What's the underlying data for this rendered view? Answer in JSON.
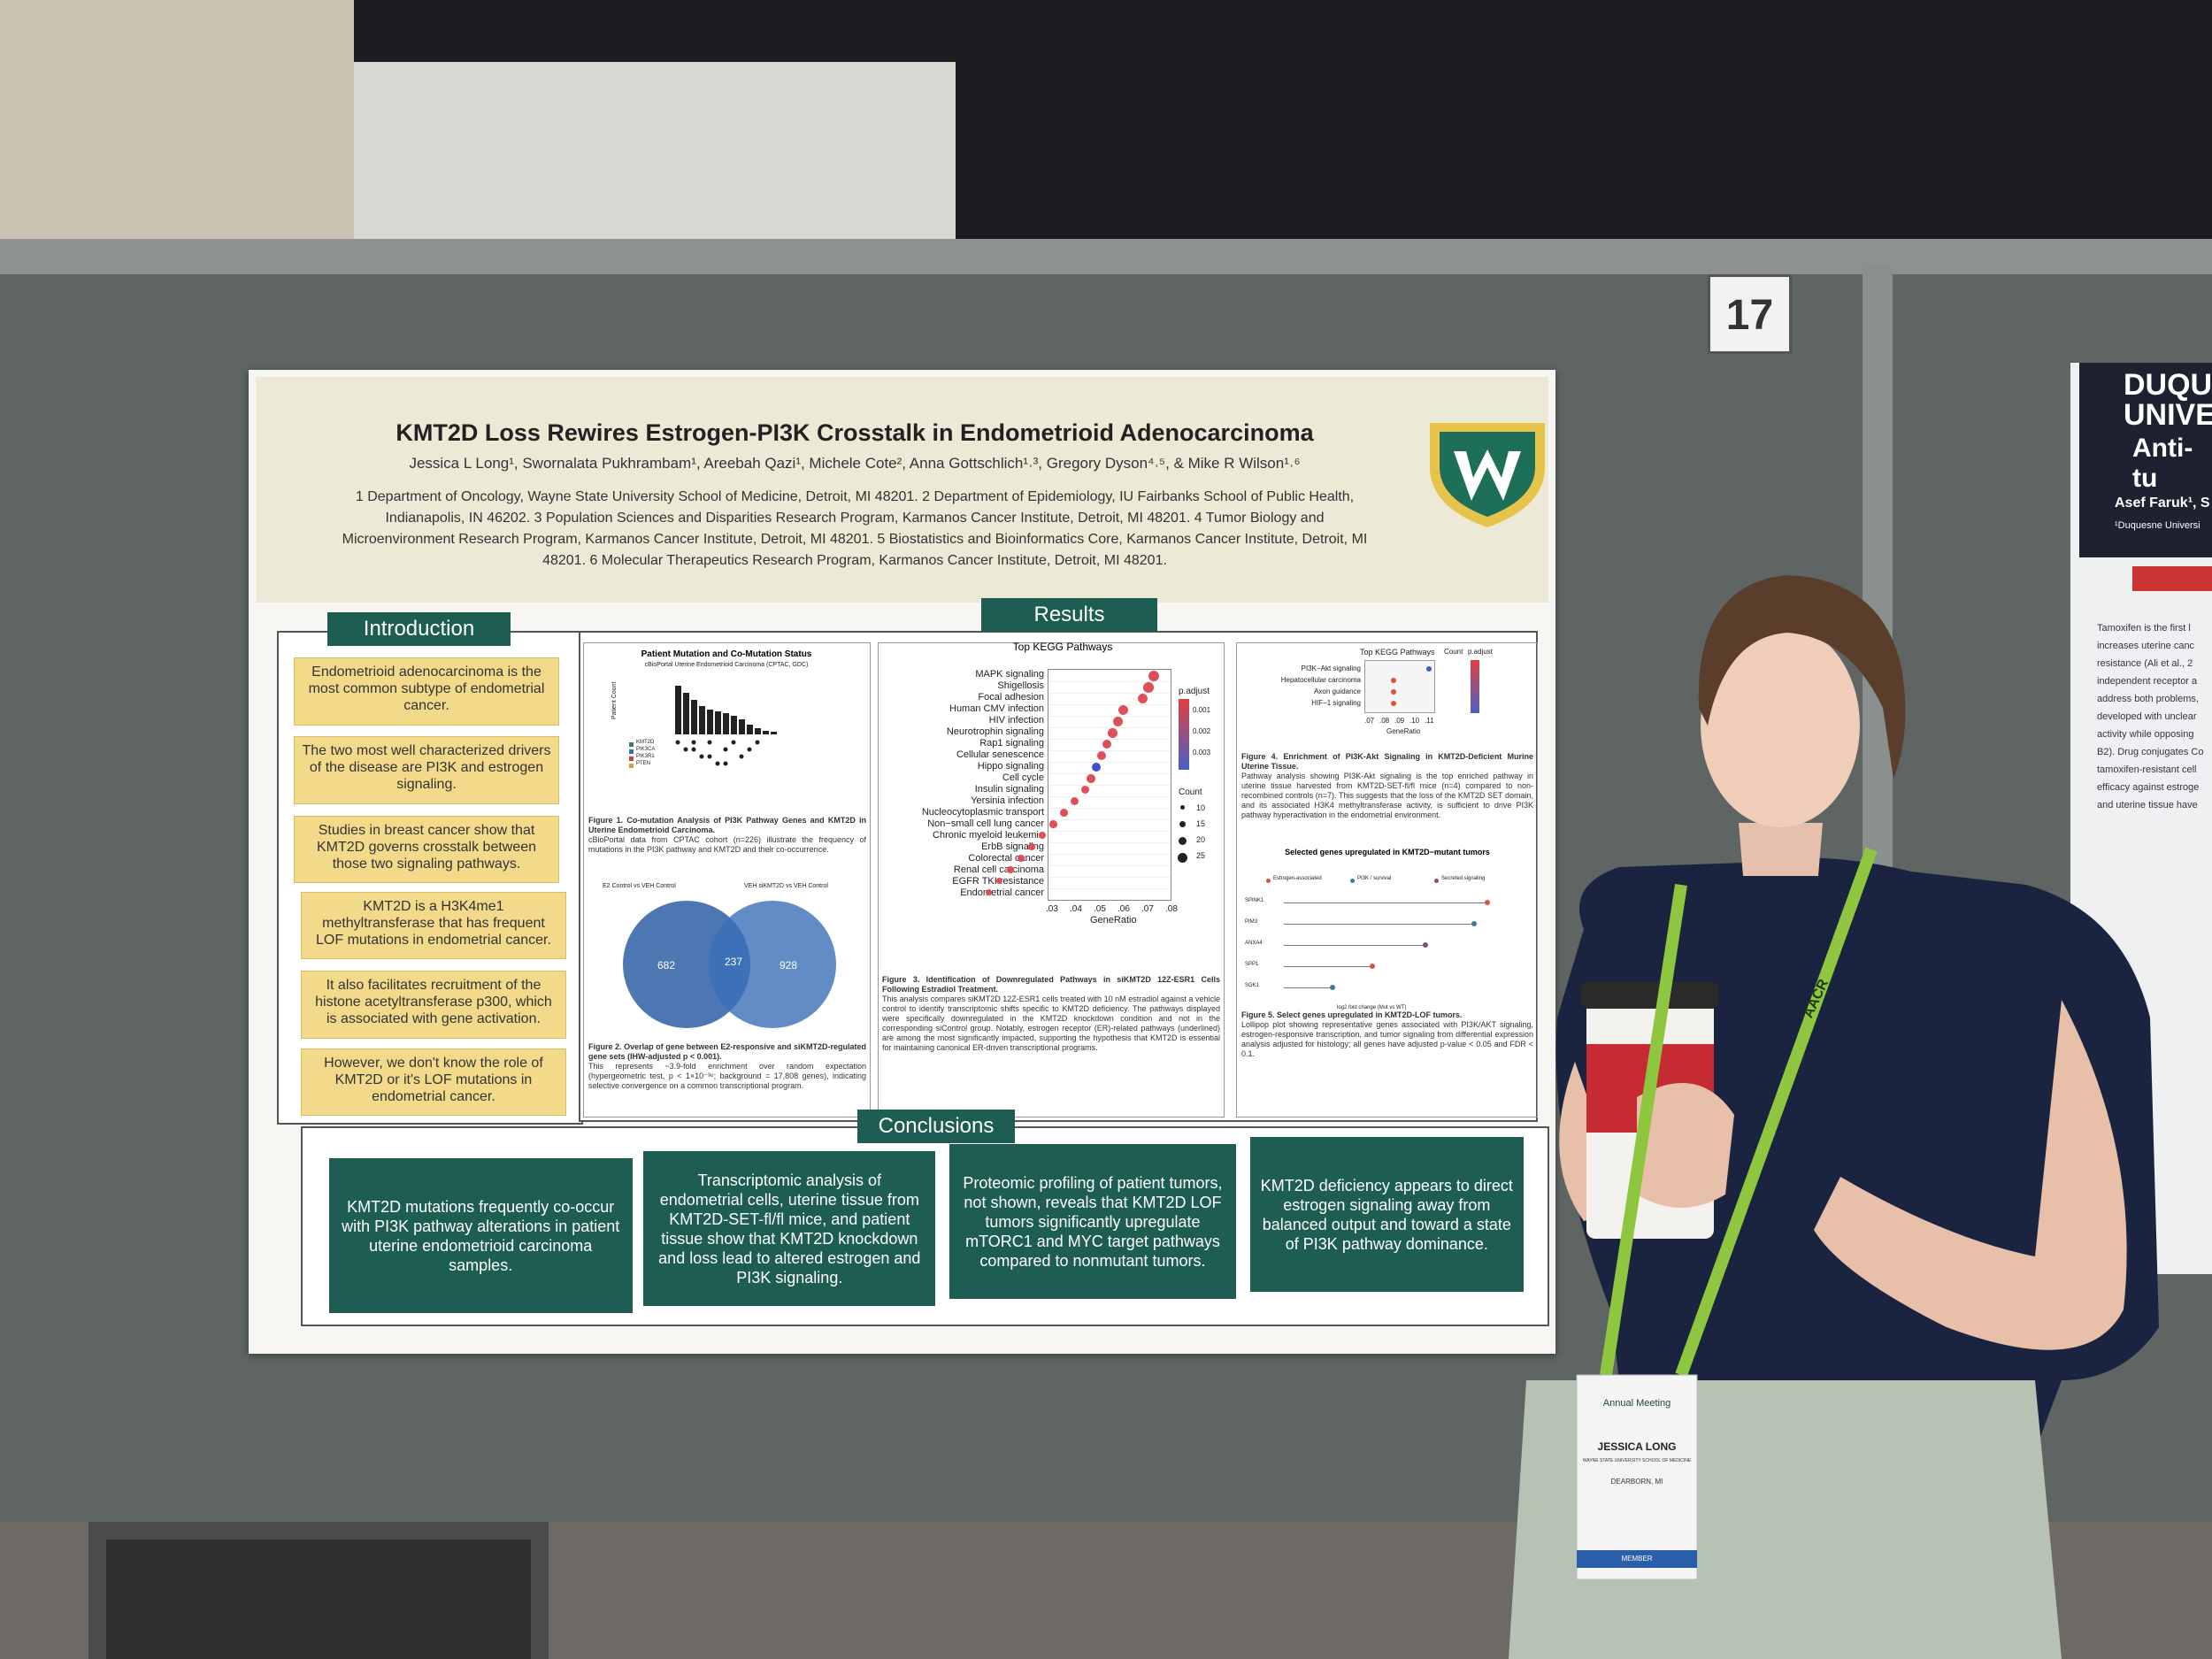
{
  "board_number": "17",
  "poster": {
    "title": "KMT2D Loss Rewires Estrogen-PI3K Crosstalk in Endometrioid Adenocarcinoma",
    "authors": "Jessica L Long¹, Swornalata Pukhrambam¹, Areebah Qazi¹, Michele Cote², Anna Gottschlich¹˒³, Gregory Dyson⁴˒⁵, & Mike R Wilson¹˒⁶",
    "affiliations": "1 Department of Oncology, Wayne State University School of Medicine, Detroit, MI 48201. 2 Department of Epidemiology, IU Fairbanks School of Public Health, Indianapolis, IN 46202. 3 Population Sciences and Disparities Research Program, Karmanos Cancer Institute, Detroit, MI 48201. 4 Tumor Biology and Microenvironment Research Program, Karmanos Cancer Institute, Detroit, MI 48201. 5 Biostatistics and Bioinformatics Core, Karmanos Cancer Institute, Detroit, MI 48201. 6 Molecular Therapeutics Research Program, Karmanos Cancer Institute, Detroit, MI 48201.",
    "introduction": {
      "heading": "Introduction",
      "items": [
        "Endometrioid adenocarcinoma is the most common subtype of endometrial cancer.",
        "The two most well characterized drivers of the disease are PI3K and estrogen signaling.",
        "Studies in breast cancer show that KMT2D governs crosstalk between those two signaling pathways.",
        "KMT2D is a H3K4me1 methyltransferase that has frequent LOF mutations in endometrial cancer.",
        "It also facilitates recruitment of the histone acetyltransferase p300, which is associated with gene activation.",
        "However, we don't know the role of KMT2D or it's LOF mutations in endometrial cancer."
      ]
    },
    "results": {
      "heading": "Results",
      "fig1": {
        "title": "Patient Mutation and Co-Mutation Status",
        "subtitle": "cBioPortal Uterine Endometrioid Carcinoma (CPTAC, GDC)",
        "ylabel": "Patient Count",
        "genes": [
          "KMT2D",
          "PIK3CA",
          "PIK3R1",
          "PTEN"
        ],
        "caption_title": "Figure 1. Co-mutation Analysis of PI3K Pathway Genes and KMT2D in Uterine Endometrioid Carcinoma.",
        "caption": "cBioPortal data from CPTAC cohort (n=226) illustrate the frequency of mutations in the PI3K pathway and KMT2D and their co-occurrence."
      },
      "fig2": {
        "set_a": "E2 Control vs VEH Control",
        "set_b": "VEH siKMT2D vs VEH Control",
        "only_a": "682",
        "both": "237",
        "only_b": "928",
        "caption_title": "Figure 2. Overlap of gene between E2-responsive and siKMT2D-regulated gene sets (IHW-adjusted p < 0.001).",
        "caption": "This represents ~3.9-fold enrichment over random expectation (hypergeometric test, p < 1×10⁻³⁶; background = 17,808 genes), indicating selective convergence on a common transcriptional program."
      },
      "fig3": {
        "title": "Top KEGG Pathways",
        "pathways": [
          "MAPK signaling",
          "Shigellosis",
          "Focal adhesion",
          "Human CMV infection",
          "HIV infection",
          "Neurotrophin signaling",
          "Rap1 signaling",
          "Cellular senescence",
          "Hippo signaling",
          "Cell cycle",
          "Insulin signaling",
          "Yersinia infection",
          "Nucleocytoplasmic transport",
          "Non−small cell lung cancer",
          "Chronic myeloid leukemia",
          "ErbB signaling",
          "Colorectal cancer",
          "Renal cell carcinoma",
          "EGFR TKI resistance",
          "Endometrial cancer"
        ],
        "xticks": [
          ".03",
          ".04",
          ".05",
          ".06",
          ".07",
          ".08"
        ],
        "xlabel": "GeneRatio",
        "color_title": "p.adjust",
        "color_ticks": [
          "0.001",
          "0.002",
          "0.003"
        ],
        "size_title": "Count",
        "size_ticks": [
          "10",
          "15",
          "20",
          "25"
        ],
        "caption_title": "Figure 3. Identification of Downregulated Pathways in siKMT2D 12Z-ESR1 Cells Following Estradiol Treatment.",
        "caption": "This analysis compares siKMT2D 12Z-ESR1 cells treated with 10 nM estradiol against a vehicle control to identify transcriptomic shifts specific to KMT2D deficiency. The pathways displayed were specifically downregulated in the KMT2D knockdown condition and not in the corresponding siControl group. Notably, estrogen receptor (ER)-related pathways (underlined) are among the most significantly impacted, supporting the hypothesis that KMT2D is essential for maintaining canonical ER-driven transcriptional programs."
      },
      "fig4": {
        "title": "Top KEGG Pathways",
        "pathways": [
          "PI3K−Akt signaling",
          "Hepatocellular carcinoma",
          "Axon guidance",
          "HIF−1 signaling"
        ],
        "xticks": [
          ".07",
          ".08",
          ".09",
          ".10",
          ".11"
        ],
        "xlabel": "GeneRatio",
        "size_title": "Count",
        "color_title": "p.adjust",
        "caption_title": "Figure 4. Enrichment of PI3K-Akt Signaling in KMT2D-Deficient Murine Uterine Tissue.",
        "caption": "Pathway analysis showing PI3K-Akt signaling is the top enriched pathway in uterine tissue harvested from KMT2D-SET-fl/fl mice (n=4) compared to non-recombined controls (n=7). This suggests that the loss of the KMT2D SET domain, and its associated H3K4 methyltransferase activity, is sufficient to drive PI3K pathway hyperactivation in the endometrial environment."
      },
      "fig5": {
        "title": "Selected genes upregulated in KMT2D−mutant tumors",
        "legend": [
          "Estrogen-associated",
          "PI3K / survival",
          "Secreted signaling"
        ],
        "genes": [
          "SPINK1",
          "PIM3",
          "ANXA4",
          "SPP1",
          "SGK1"
        ],
        "xlabel": "log2 fold change (Mut vs WT)",
        "caption_title": "Figure 5. Select genes upregulated in KMT2D-LOF tumors.",
        "caption": "Lollipop plot showing representative genes associated with PI3K/AKT signaling, estrogen-responsive transcription, and tumor signaling from differential expression analysis adjusted for histology; all genes have adjusted p-value < 0.05 and FDR < 0.1."
      }
    },
    "conclusions": {
      "heading": "Conclusions",
      "items": [
        "KMT2D mutations frequently co-occur with PI3K pathway alterations in patient uterine endometrioid carcinoma samples.",
        "Transcriptomic analysis of endometrial cells, uterine tissue from KMT2D-SET-fl/fl mice, and patient tissue show that KMT2D knockdown and loss lead to altered estrogen and PI3K signaling.",
        "Proteomic profiling of patient tumors, not shown, reveals that KMT2D LOF tumors significantly upregulate mTORC1 and MYC target pathways compared to nonmutant tumors.",
        "KMT2D deficiency appears to direct estrogen signaling away from balanced output and toward a state of PI3K pathway dominance."
      ]
    }
  },
  "neighbor_poster": {
    "logo": "DUQUE\nUNIVER",
    "title": "Anti-tu",
    "author": "Asef Faruk¹, S",
    "affil": "¹Duquesne Universi",
    "text": "Tamoxifen is the first l increases uterine canc resistance (Ali et al., 2 independent receptor a address both problems, developed with unclear activity while opposing B2). Drug conjugates Co tamoxifen-resistant cell efficacy against estroge and uterine tissue have"
  },
  "badge": {
    "meeting": "Annual Meeting",
    "name": "JESSICA LONG",
    "institution": "WAYNE STATE UNIVERSITY SCHOOL OF MEDICINE",
    "city": "DEARBORN, MI",
    "type": "MEMBER",
    "lanyard": "AACR"
  }
}
